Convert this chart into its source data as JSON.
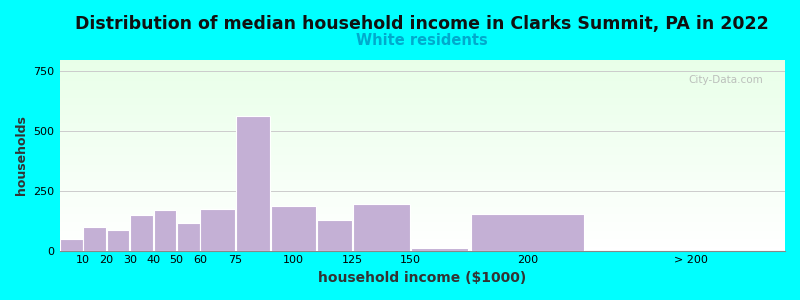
{
  "title": "Distribution of median household income in Clarks Summit, PA in 2022",
  "subtitle": "White residents",
  "xlabel": "household income ($1000)",
  "ylabel": "households",
  "background_outer": "#00FFFF",
  "bar_color": "#C4B0D5",
  "title_fontsize": 12.5,
  "subtitle_fontsize": 10.5,
  "subtitle_color": "#00AACC",
  "xlabel_fontsize": 10,
  "ylabel_fontsize": 9,
  "watermark": "City-Data.com",
  "bar_lefts": [
    0,
    10,
    20,
    30,
    40,
    50,
    60,
    75,
    90,
    110,
    125,
    150,
    175,
    225
  ],
  "bar_rights": [
    10,
    20,
    30,
    40,
    50,
    60,
    75,
    90,
    110,
    125,
    150,
    175,
    225,
    310
  ],
  "values": [
    50,
    100,
    85,
    150,
    170,
    115,
    175,
    565,
    185,
    130,
    195,
    10,
    155,
    0
  ],
  "xtick_positions": [
    10,
    20,
    30,
    40,
    50,
    60,
    75,
    100,
    125,
    150,
    200,
    270
  ],
  "xtick_labels": [
    "10",
    "20",
    "30",
    "40",
    "50",
    "60",
    "75",
    "100",
    "125",
    "150",
    "200",
    "> 200"
  ],
  "ylim": [
    0,
    800
  ],
  "yticks": [
    0,
    250,
    500,
    750
  ],
  "xlim": [
    0,
    310
  ]
}
